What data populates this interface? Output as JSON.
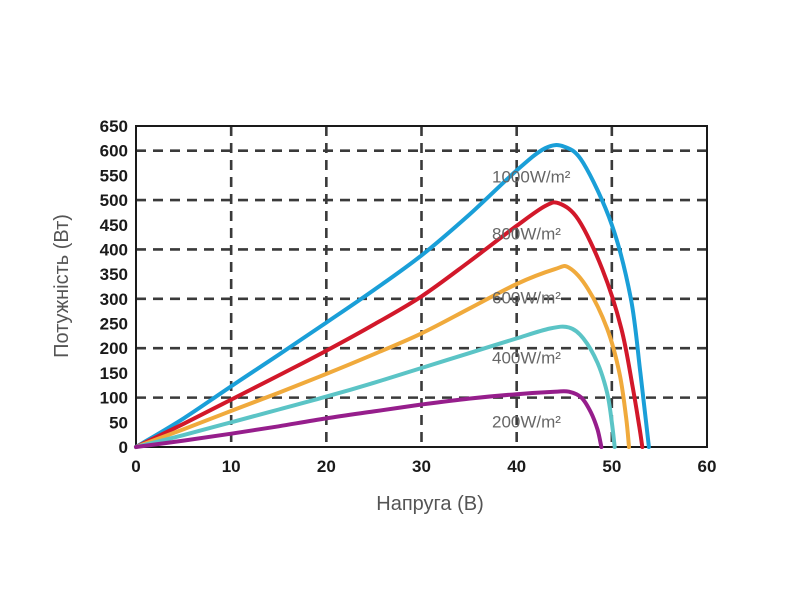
{
  "chart_data": {
    "type": "line",
    "title": "",
    "xlabel": "Напруга (В)",
    "ylabel": "Потужність (Вт)",
    "xlim": [
      0,
      60
    ],
    "ylim": [
      0,
      650
    ],
    "x_ticks": [
      "0",
      "10",
      "20",
      "30",
      "40",
      "50",
      "60"
    ],
    "y_ticks": [
      "0",
      "50",
      "100",
      "150",
      "200",
      "250",
      "300",
      "350",
      "400",
      "450",
      "500",
      "550",
      "600",
      "650"
    ],
    "grid": true,
    "series": [
      {
        "name": "1000W/m²",
        "color": "#1a9fd8",
        "points": [
          [
            0,
            0
          ],
          [
            5,
            58
          ],
          [
            10,
            123
          ],
          [
            15,
            187
          ],
          [
            20,
            252
          ],
          [
            25,
            318
          ],
          [
            30,
            388
          ],
          [
            35,
            470
          ],
          [
            40,
            560
          ],
          [
            43,
            605
          ],
          [
            45,
            608
          ],
          [
            47,
            575
          ],
          [
            50,
            450
          ],
          [
            52,
            300
          ],
          [
            53,
            150
          ],
          [
            53.6,
            50
          ],
          [
            53.9,
            0
          ]
        ]
      },
      {
        "name": "800W/m²",
        "color": "#d2182a",
        "points": [
          [
            0,
            0
          ],
          [
            5,
            47
          ],
          [
            10,
            96
          ],
          [
            15,
            145
          ],
          [
            20,
            195
          ],
          [
            25,
            248
          ],
          [
            30,
            305
          ],
          [
            35,
            375
          ],
          [
            40,
            448
          ],
          [
            43,
            488
          ],
          [
            44.5,
            493
          ],
          [
            46.5,
            460
          ],
          [
            49,
            360
          ],
          [
            51,
            240
          ],
          [
            52.2,
            120
          ],
          [
            52.9,
            40
          ],
          [
            53.2,
            0
          ]
        ]
      },
      {
        "name": "600W/m²",
        "color": "#f0aa3c",
        "points": [
          [
            0,
            0
          ],
          [
            5,
            36
          ],
          [
            10,
            73
          ],
          [
            15,
            110
          ],
          [
            20,
            148
          ],
          [
            25,
            188
          ],
          [
            30,
            230
          ],
          [
            35,
            280
          ],
          [
            40,
            330
          ],
          [
            44,
            360
          ],
          [
            45.5,
            363
          ],
          [
            47.5,
            320
          ],
          [
            49.5,
            240
          ],
          [
            50.8,
            150
          ],
          [
            51.5,
            60
          ],
          [
            51.8,
            0
          ]
        ]
      },
      {
        "name": "400W/m²",
        "color": "#5bc4c6",
        "points": [
          [
            0,
            0
          ],
          [
            5,
            24
          ],
          [
            10,
            50
          ],
          [
            15,
            76
          ],
          [
            20,
            102
          ],
          [
            25,
            130
          ],
          [
            30,
            160
          ],
          [
            35,
            190
          ],
          [
            40,
            220
          ],
          [
            43.5,
            240
          ],
          [
            45.5,
            242
          ],
          [
            47,
            220
          ],
          [
            48.5,
            170
          ],
          [
            49.5,
            110
          ],
          [
            50,
            50
          ],
          [
            50.3,
            0
          ]
        ]
      },
      {
        "name": "200W/m²",
        "color": "#961e8c",
        "points": [
          [
            0,
            0
          ],
          [
            5,
            13
          ],
          [
            10,
            27
          ],
          [
            15,
            42
          ],
          [
            20,
            58
          ],
          [
            25,
            72
          ],
          [
            30,
            86
          ],
          [
            35,
            98
          ],
          [
            40,
            107
          ],
          [
            44,
            112
          ],
          [
            45.5,
            112
          ],
          [
            46.8,
            100
          ],
          [
            47.8,
            70
          ],
          [
            48.5,
            35
          ],
          [
            48.9,
            0
          ]
        ]
      }
    ]
  }
}
